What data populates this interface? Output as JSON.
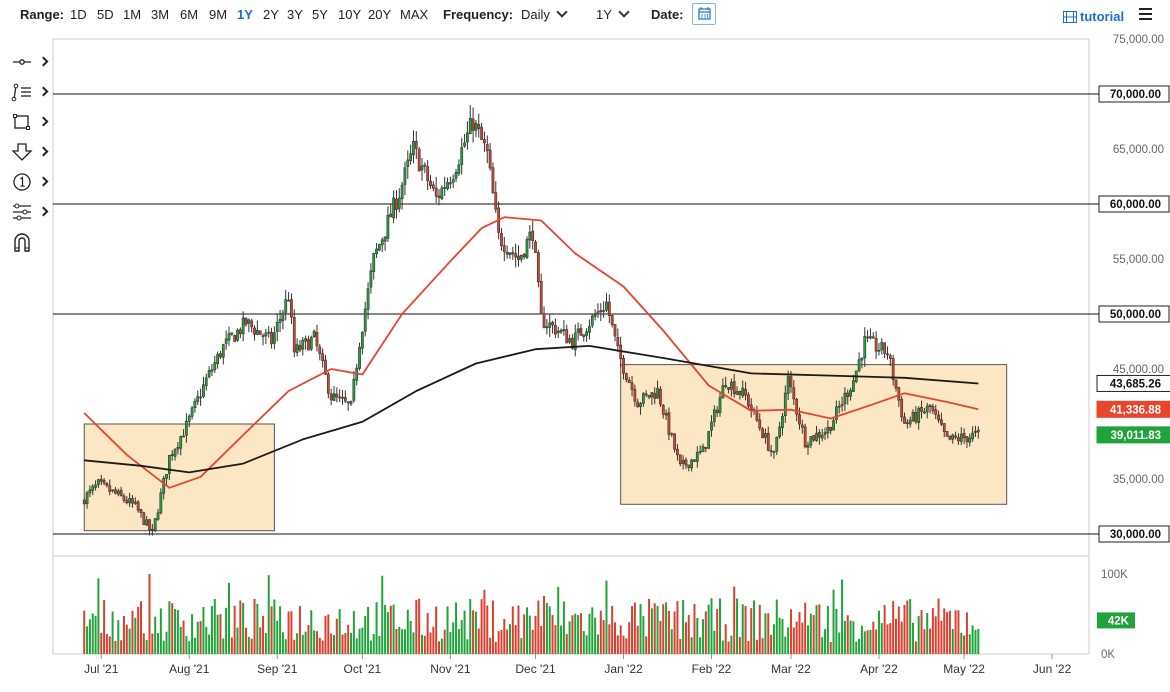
{
  "toolbar": {
    "range_label": "Range:",
    "ranges": [
      "1D",
      "5D",
      "1M",
      "3M",
      "6M",
      "9M",
      "1Y",
      "2Y",
      "3Y",
      "5Y",
      "10Y",
      "20Y",
      "MAX"
    ],
    "active_range": "1Y",
    "frequency_label": "Frequency:",
    "frequency_value": "Daily",
    "period_value": "1Y",
    "date_label": "Date:",
    "tutorial_label": "tutorial",
    "icon_calendar": "calendar-icon",
    "icon_tutorial": "film-icon",
    "icon_menu": "hamburger-menu-icon"
  },
  "sidebar_tools": [
    {
      "name": "crosshair-tool",
      "icon": "crosshair-icon"
    },
    {
      "name": "trendline-tool",
      "icon": "trendline-icon"
    },
    {
      "name": "shape-tool",
      "icon": "rectangle-icon"
    },
    {
      "name": "arrow-tool",
      "icon": "arrow-down-icon"
    },
    {
      "name": "annotation-tool",
      "icon": "numbered-circle-icon"
    },
    {
      "name": "indicator-tool",
      "icon": "sliders-icon"
    },
    {
      "name": "magnet-tool",
      "icon": "magnet-icon"
    }
  ],
  "colors": {
    "up": "#1fa33a",
    "down": "#d9412e",
    "ma50": "#e8452c",
    "ma200": "#1a1a1a",
    "zone_fill": "#fbe7c4",
    "last_price": "#1fa33a",
    "accent": "#1a6fd0"
  },
  "chart_data": {
    "type": "candlestick",
    "ylim": [
      28000,
      75000
    ],
    "y_ticks": [
      {
        "value": 75000,
        "label": "75,000.00"
      },
      {
        "value": 65000,
        "label": "65,000.00"
      },
      {
        "value": 55000,
        "label": "55,000.00"
      },
      {
        "value": 45000,
        "label": "45,000.00"
      },
      {
        "value": 35000,
        "label": "35,000.00"
      }
    ],
    "x_ticks": [
      "Jul '21",
      "Aug '21",
      "Sep '21",
      "Oct '21",
      "Nov '21",
      "Dec '21",
      "Jan '22",
      "Feb '22",
      "Mar '22",
      "Apr '22",
      "May '22",
      "Jun '22"
    ],
    "horizontal_levels": [
      {
        "value": 70000,
        "label": "70,000.00"
      },
      {
        "value": 60000,
        "label": "60,000.00"
      },
      {
        "value": 50000,
        "label": "50,000.00"
      },
      {
        "value": 30000,
        "label": "30,000.00"
      }
    ],
    "price_tags": [
      {
        "value": 43685.26,
        "label": "43,685.26",
        "kind": "ma200"
      },
      {
        "value": 41336.88,
        "label": "41,336.88",
        "kind": "ma50"
      },
      {
        "value": 39011.83,
        "label": "39,011.83",
        "kind": "last"
      }
    ],
    "zones": [
      {
        "start": "2021-06-25",
        "end": "2021-08-31",
        "low": 30300,
        "high": 40000
      },
      {
        "start": "2021-12-31",
        "end": "2022-05-16",
        "low": 32700,
        "high": 45400
      }
    ],
    "ohlc_anchors": [
      [
        "2021-06-25",
        33000
      ],
      [
        "2021-07-01",
        34500
      ],
      [
        "2021-07-08",
        33500
      ],
      [
        "2021-07-14",
        32500
      ],
      [
        "2021-07-20",
        30000
      ],
      [
        "2021-07-26",
        37000
      ],
      [
        "2021-08-01",
        39800
      ],
      [
        "2021-08-08",
        44000
      ],
      [
        "2021-08-14",
        47000
      ],
      [
        "2021-08-22",
        49200
      ],
      [
        "2021-08-31",
        47500
      ],
      [
        "2021-09-06",
        51700
      ],
      [
        "2021-09-08",
        46500
      ],
      [
        "2021-09-15",
        47800
      ],
      [
        "2021-09-21",
        42500
      ],
      [
        "2021-09-28",
        41500
      ],
      [
        "2021-10-01",
        47500
      ],
      [
        "2021-10-06",
        55000
      ],
      [
        "2021-10-15",
        61000
      ],
      [
        "2021-10-20",
        65000
      ],
      [
        "2021-10-28",
        60500
      ],
      [
        "2021-11-03",
        63000
      ],
      [
        "2021-11-10",
        67500
      ],
      [
        "2021-11-15",
        64500
      ],
      [
        "2021-11-19",
        57000
      ],
      [
        "2021-11-26",
        55000
      ],
      [
        "2021-12-01",
        57500
      ],
      [
        "2021-12-04",
        49500
      ],
      [
        "2021-12-10",
        48500
      ],
      [
        "2021-12-15",
        47500
      ],
      [
        "2021-12-27",
        51000
      ],
      [
        "2021-12-31",
        46500
      ],
      [
        "2022-01-07",
        42000
      ],
      [
        "2022-01-14",
        43000
      ],
      [
        "2022-01-22",
        36000
      ],
      [
        "2022-01-30",
        37500
      ],
      [
        "2022-02-07",
        44000
      ],
      [
        "2022-02-14",
        42500
      ],
      [
        "2022-02-24",
        37000
      ],
      [
        "2022-03-01",
        44000
      ],
      [
        "2022-03-07",
        38500
      ],
      [
        "2022-03-15",
        39500
      ],
      [
        "2022-03-24",
        44000
      ],
      [
        "2022-03-28",
        47500
      ],
      [
        "2022-04-05",
        46500
      ],
      [
        "2022-04-11",
        40000
      ],
      [
        "2022-04-20",
        41500
      ],
      [
        "2022-04-26",
        38500
      ],
      [
        "2022-05-03",
        38800
      ],
      [
        "2022-05-06",
        39000
      ]
    ],
    "ma50_anchors": [
      [
        "2021-06-25",
        41000
      ],
      [
        "2021-07-10",
        37200
      ],
      [
        "2021-07-25",
        34200
      ],
      [
        "2021-08-05",
        35200
      ],
      [
        "2021-08-20",
        39000
      ],
      [
        "2021-09-05",
        43000
      ],
      [
        "2021-09-20",
        45000
      ],
      [
        "2021-10-01",
        44500
      ],
      [
        "2021-10-15",
        50000
      ],
      [
        "2021-11-01",
        54800
      ],
      [
        "2021-11-12",
        57800
      ],
      [
        "2021-11-20",
        58800
      ],
      [
        "2021-12-03",
        58500
      ],
      [
        "2021-12-15",
        55500
      ],
      [
        "2022-01-01",
        52500
      ],
      [
        "2022-01-15",
        48500
      ],
      [
        "2022-01-31",
        43500
      ],
      [
        "2022-02-15",
        41200
      ],
      [
        "2022-03-01",
        41300
      ],
      [
        "2022-03-15",
        40500
      ],
      [
        "2022-03-30",
        41800
      ],
      [
        "2022-04-10",
        42800
      ],
      [
        "2022-04-25",
        42000
      ],
      [
        "2022-05-06",
        41336.88
      ]
    ],
    "ma200_anchors": [
      [
        "2021-06-25",
        36700
      ],
      [
        "2021-07-15",
        36200
      ],
      [
        "2021-08-01",
        35600
      ],
      [
        "2021-08-20",
        36400
      ],
      [
        "2021-09-10",
        38600
      ],
      [
        "2021-10-01",
        40200
      ],
      [
        "2021-10-20",
        43000
      ],
      [
        "2021-11-10",
        45500
      ],
      [
        "2021-12-01",
        46800
      ],
      [
        "2021-12-20",
        47100
      ],
      [
        "2022-01-15",
        46000
      ],
      [
        "2022-02-15",
        44600
      ],
      [
        "2022-03-15",
        44400
      ],
      [
        "2022-04-10",
        44200
      ],
      [
        "2022-05-06",
        43685.26
      ]
    ],
    "volume": {
      "ylim": [
        0,
        110000
      ],
      "y_ticks": [
        {
          "value": 100000,
          "label": "100K"
        },
        {
          "value": 0,
          "label": "0K"
        }
      ],
      "last": {
        "value": 42000,
        "label": "42K"
      }
    }
  }
}
